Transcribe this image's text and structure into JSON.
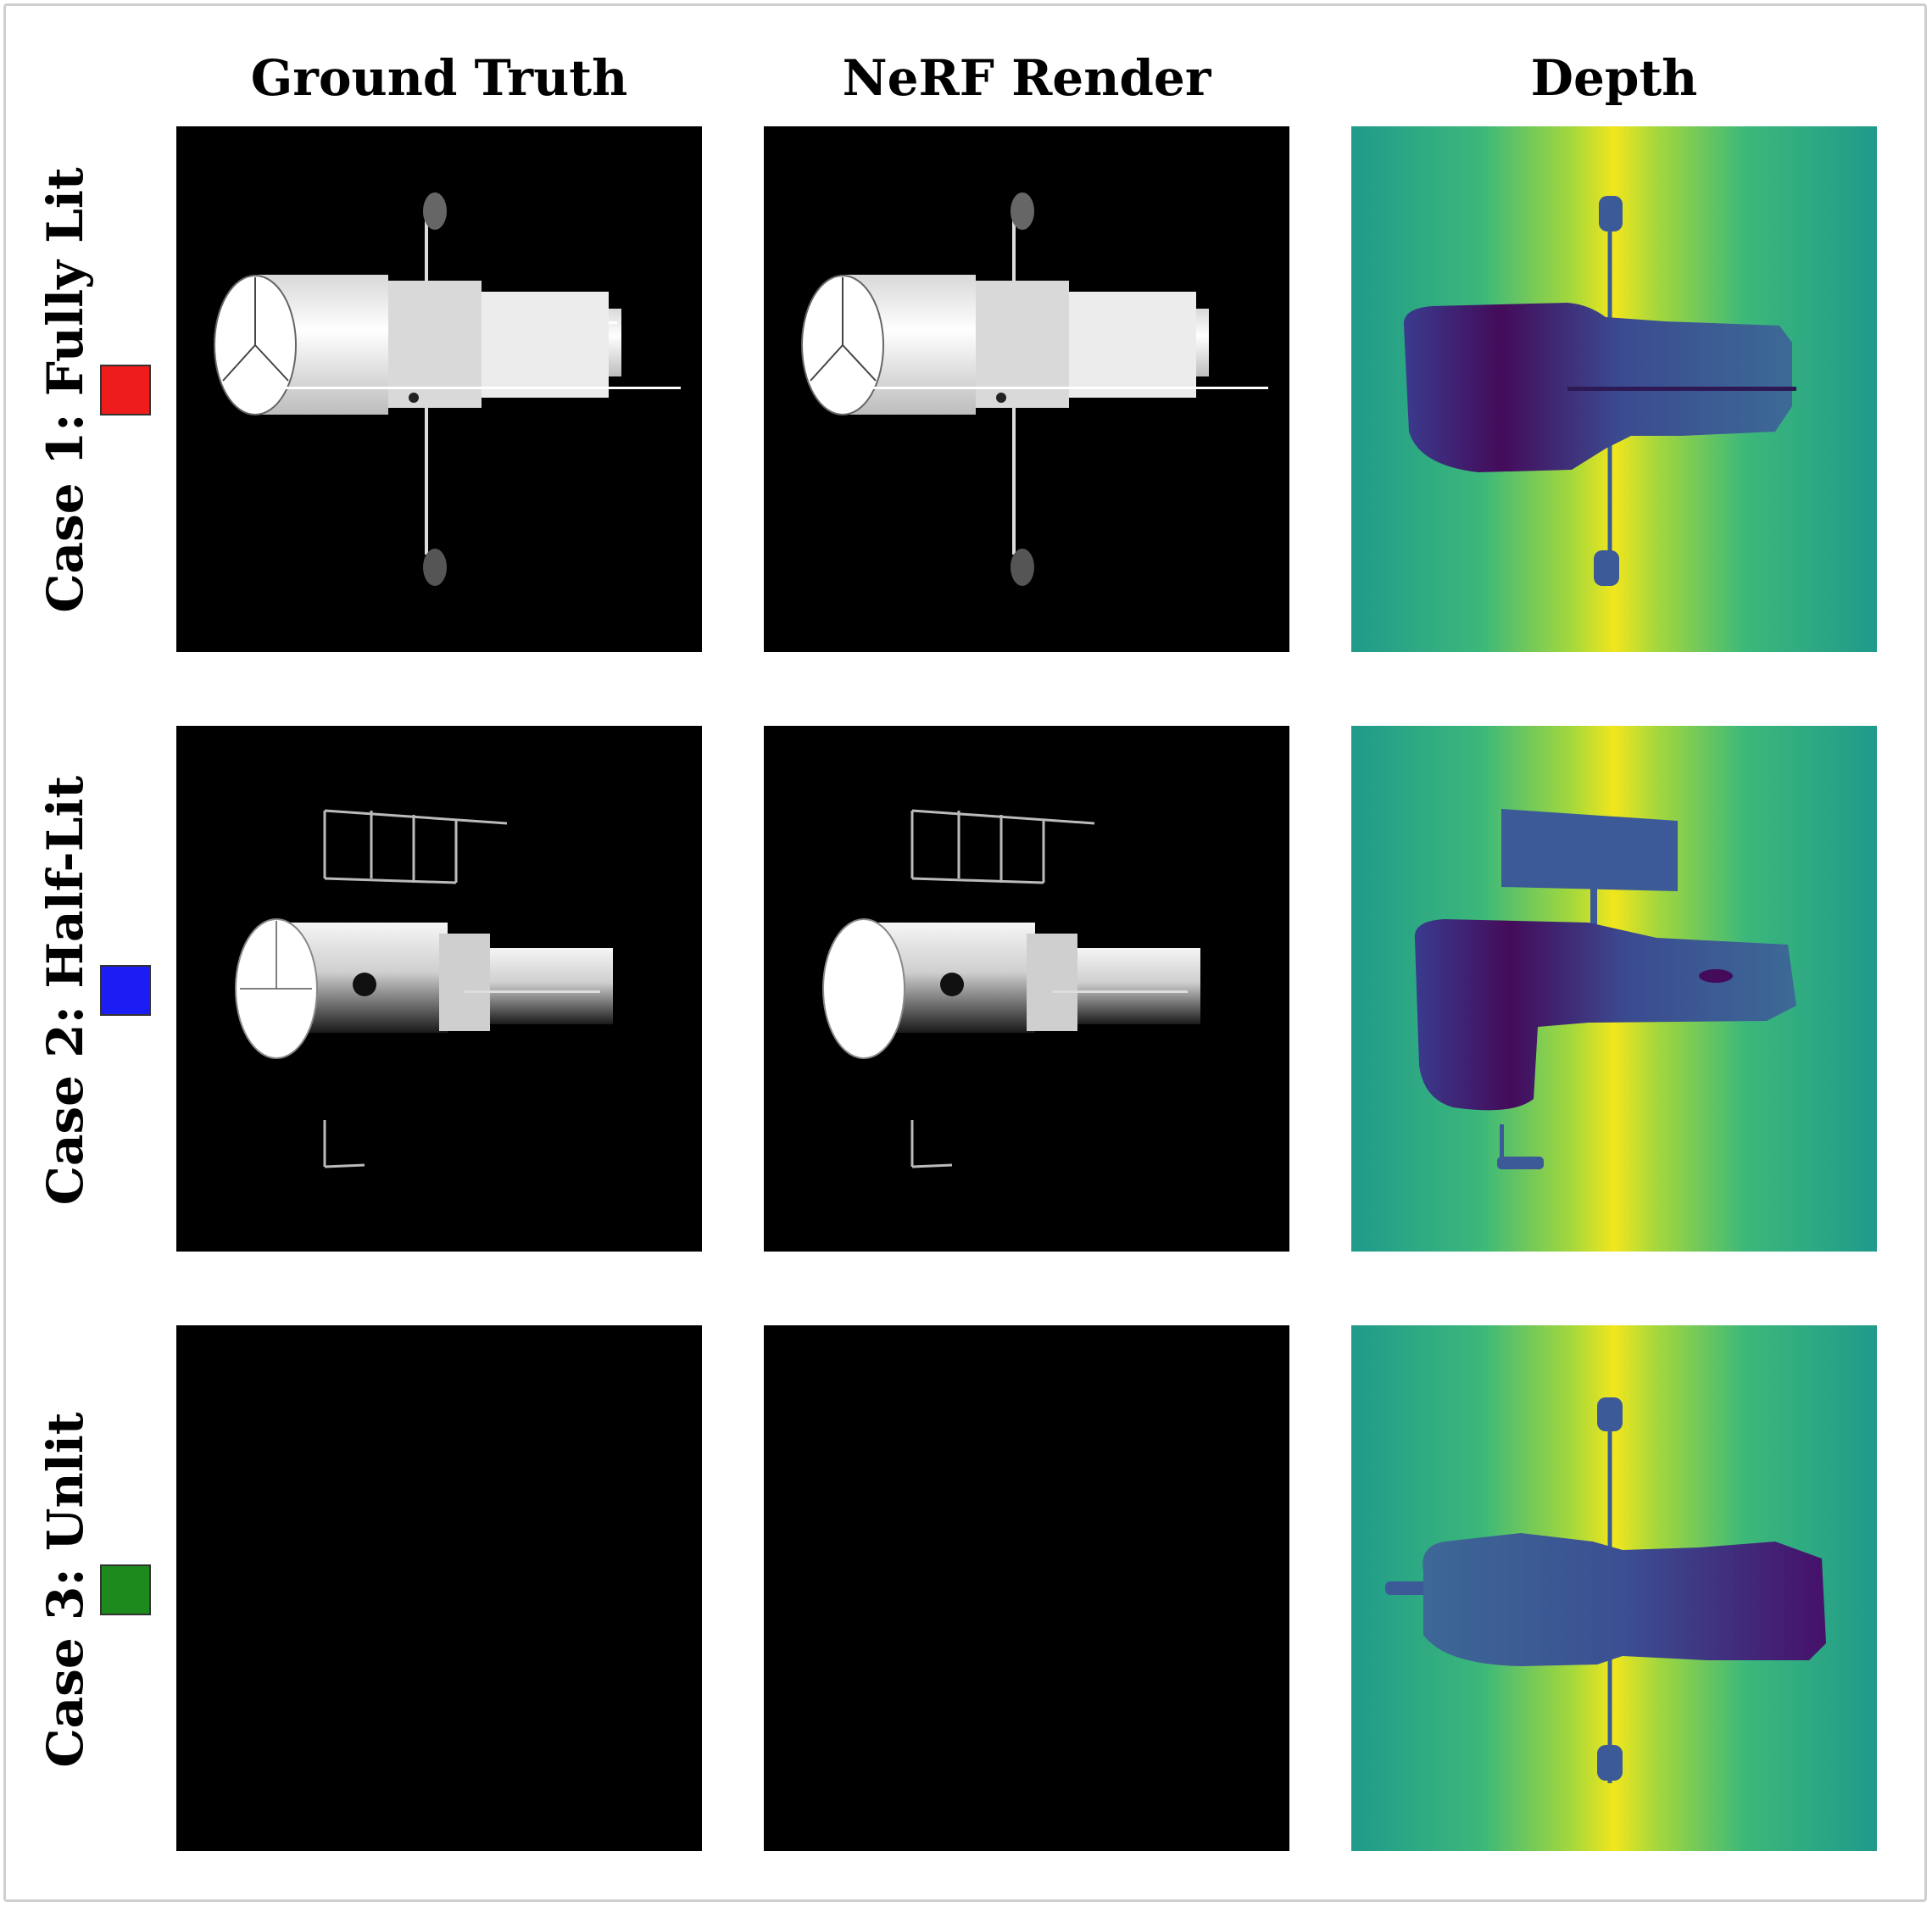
{
  "columns": [
    "Ground Truth",
    "NeRF Render",
    "Depth"
  ],
  "rows": [
    {
      "label": "Case 1: Fully Lit",
      "swatch_color": "#ee1c1c"
    },
    {
      "label": "Case 2: Half-Lit",
      "swatch_color": "#1c1cf5"
    },
    {
      "label": "Case 3: Unlit",
      "swatch_color": "#1c8a1c"
    }
  ],
  "colors": {
    "depth_far": "#22a08a",
    "depth_mid": "#f0e51e",
    "object_near": "#440b5a",
    "object_mid": "#3b5a97"
  }
}
